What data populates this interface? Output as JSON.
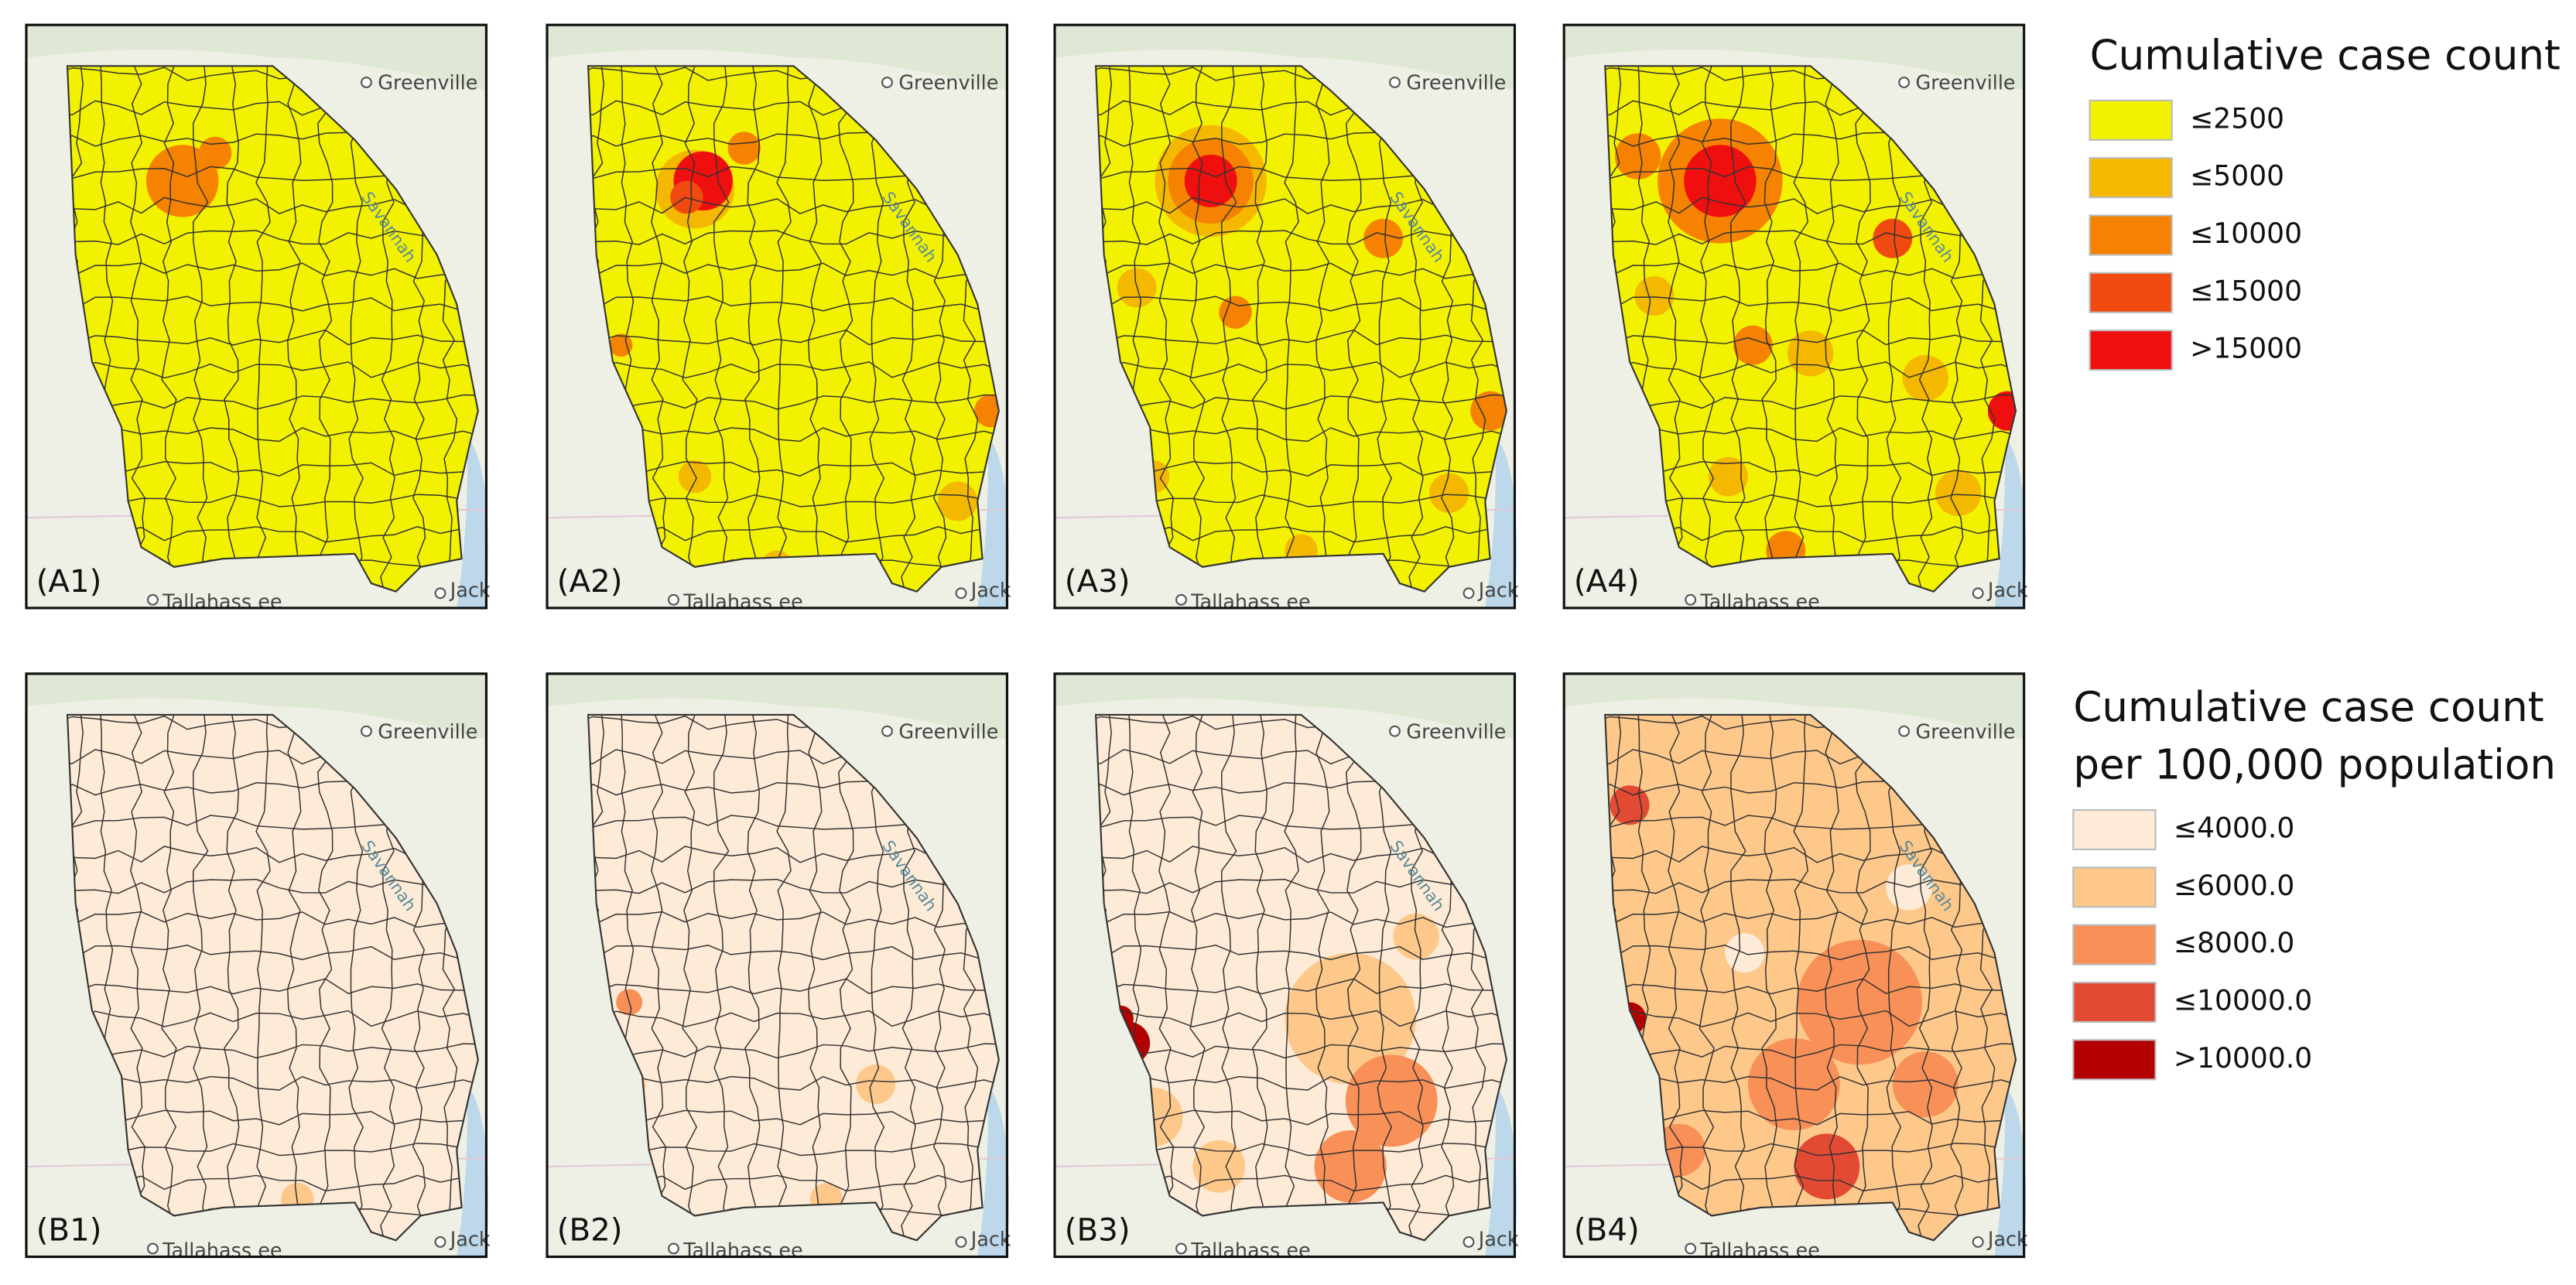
{
  "panels": [
    {
      "label": "(A1)"
    },
    {
      "label": "(A2)"
    },
    {
      "label": "(A3)"
    },
    {
      "label": "(A4)"
    },
    {
      "label": "(B1)"
    },
    {
      "label": "(B2)"
    },
    {
      "label": "(B3)"
    },
    {
      "label": "(B4)"
    }
  ],
  "map_labels": [
    "Greenville",
    "Savannah",
    "Tallahass ee",
    "Jack"
  ],
  "legends": [
    {
      "title": [
        "Cumulative case count"
      ],
      "items": [
        {
          "label": "≤2500",
          "color": "#f2f200"
        },
        {
          "label": "≤5000",
          "color": "#f5b800"
        },
        {
          "label": "≤10000",
          "color": "#f58200"
        },
        {
          "label": "≤15000",
          "color": "#f04a10"
        },
        {
          "label": ">15000",
          "color": "#f00f0f"
        }
      ]
    },
    {
      "title": [
        "Cumulative case count",
        "per 100,000 population"
      ],
      "items": [
        {
          "label": "≤4000.0",
          "color": "#fdebd7"
        },
        {
          "label": "≤6000.0",
          "color": "#fdc88a"
        },
        {
          "label": "≤8000.0",
          "color": "#f89058"
        },
        {
          "label": "≤10000.0",
          "color": "#e34a33"
        },
        {
          "label": ">10000.0",
          "color": "#b30000"
        }
      ]
    }
  ]
}
